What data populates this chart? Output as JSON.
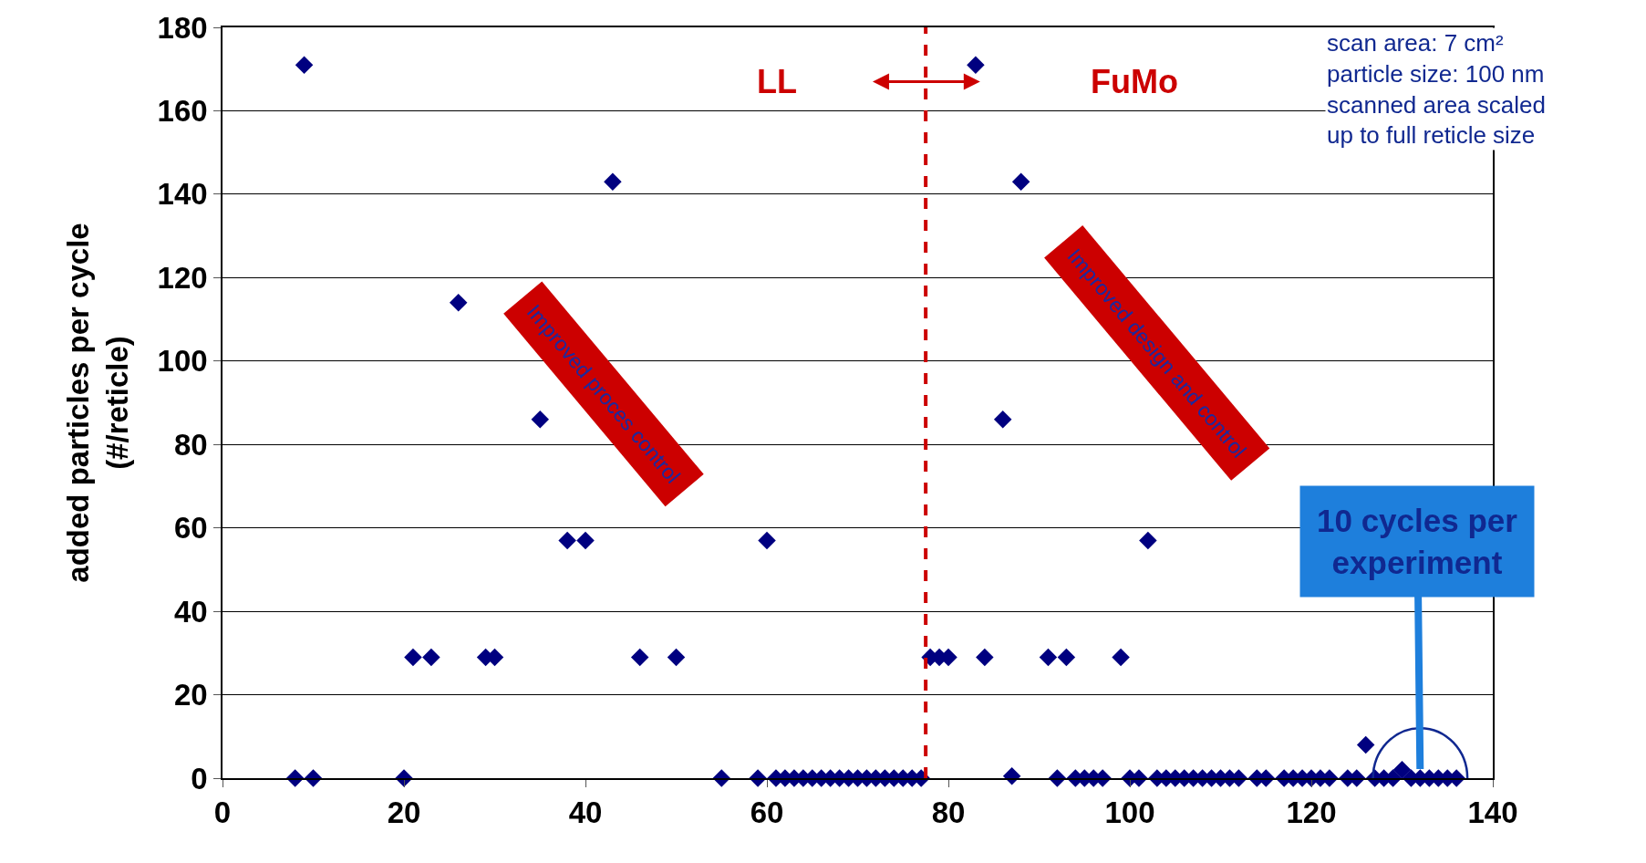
{
  "chart_data": {
    "type": "scatter",
    "ylabel": "added particles per cycle\n(#/reticle)",
    "x": [
      8,
      9,
      10,
      20,
      21,
      23,
      26,
      29,
      30,
      35,
      38,
      40,
      43,
      46,
      50,
      55,
      59,
      60,
      61,
      62,
      63,
      64,
      65,
      66,
      67,
      68,
      69,
      70,
      71,
      72,
      73,
      74,
      75,
      76,
      77,
      78,
      79,
      80,
      83,
      84,
      86,
      87,
      88,
      91,
      92,
      93,
      94,
      95,
      96,
      97,
      99,
      100,
      101,
      102,
      103,
      104,
      105,
      106,
      107,
      108,
      109,
      110,
      111,
      112,
      114,
      115,
      117,
      118,
      119,
      120,
      121,
      122,
      124,
      125,
      126,
      127,
      128,
      129,
      130,
      131,
      132,
      133,
      134,
      135,
      136
    ],
    "series": [
      {
        "color": "#000080",
        "values": [
          0,
          171,
          0,
          0,
          29,
          29,
          114,
          29,
          29,
          86,
          57,
          57,
          143,
          29,
          29,
          0,
          0,
          57,
          0,
          0,
          0,
          0,
          0,
          0,
          0,
          0,
          0,
          0,
          0,
          0,
          0,
          0,
          0,
          0,
          0,
          29,
          29,
          29,
          171,
          29,
          86,
          0.5,
          143,
          29,
          0,
          29,
          0,
          0,
          0,
          0,
          29,
          0,
          0,
          57,
          0,
          0,
          0,
          0,
          0,
          0,
          0,
          0,
          0,
          0,
          0,
          0,
          0,
          0,
          0,
          0,
          0,
          0,
          0,
          0,
          8,
          0,
          0,
          0,
          2,
          0,
          0,
          0,
          0,
          0,
          0
        ]
      }
    ],
    "xlim": [
      0,
      140
    ],
    "xticks": [
      0,
      20,
      40,
      60,
      80,
      100,
      120,
      140
    ],
    "ylim": [
      0,
      180
    ],
    "yticks": [
      0,
      20,
      40,
      60,
      80,
      100,
      120,
      140,
      160,
      180
    ],
    "grid": "y",
    "marker": "diamond",
    "ref_lines": [
      {
        "axis": "x",
        "value": 77.5,
        "color": "#cc0000",
        "line_style": "dashed"
      }
    ],
    "annotations": [
      "LL",
      "FuMo",
      "scan area: 7 cm²\nparticle size: 100 nm\nscanned area scaled\nup to full reticle size",
      {
        "text": "10 cycles per\nexperiment",
        "x": 132,
        "y": 0
      },
      "Improved proces control",
      "Improved design and control"
    ]
  }
}
